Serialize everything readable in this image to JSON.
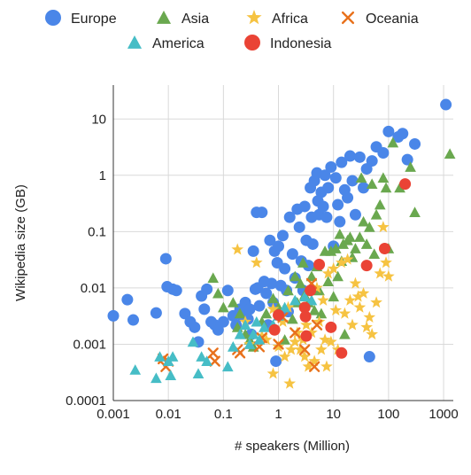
{
  "chart_data": {
    "type": "scatter",
    "xlabel": "# speakers (Million)",
    "ylabel": "Wikipedia size (GB)",
    "x_scale": "log",
    "y_scale": "log",
    "xlim": [
      0.001,
      1500
    ],
    "ylim": [
      0.0001,
      40
    ],
    "x_ticks": [
      0.001,
      0.01,
      0.1,
      1,
      10,
      100,
      1000
    ],
    "x_tick_labels": [
      "0.001",
      "0.01",
      "0.1",
      "1",
      "10",
      "100",
      "1000"
    ],
    "y_ticks": [
      0.0001,
      0.001,
      0.01,
      0.1,
      1,
      10
    ],
    "y_tick_labels": [
      "0.0001",
      "0.001",
      "0.01",
      "0.1",
      "1",
      "10"
    ],
    "grid": true,
    "legend_position": "top",
    "series": [
      {
        "name": "Europe",
        "color": "#4A86E8",
        "marker": "circle",
        "points": [
          [
            0.001,
            0.0032
          ],
          [
            0.0018,
            0.0062
          ],
          [
            0.0023,
            0.0027
          ],
          [
            0.006,
            0.0036
          ],
          [
            0.009,
            0.033
          ],
          [
            0.0095,
            0.0105
          ],
          [
            0.012,
            0.0095
          ],
          [
            0.014,
            0.009
          ],
          [
            0.02,
            0.0035
          ],
          [
            0.025,
            0.0025
          ],
          [
            0.03,
            0.002
          ],
          [
            0.035,
            0.0011
          ],
          [
            0.04,
            0.0072
          ],
          [
            0.045,
            0.0042
          ],
          [
            0.05,
            0.0095
          ],
          [
            0.06,
            0.0025
          ],
          [
            0.07,
            0.0022
          ],
          [
            0.08,
            0.0018
          ],
          [
            0.1,
            0.0025
          ],
          [
            0.12,
            0.009
          ],
          [
            0.15,
            0.0032
          ],
          [
            0.17,
            0.0022
          ],
          [
            0.2,
            0.0042
          ],
          [
            0.22,
            0.0032
          ],
          [
            0.25,
            0.0055
          ],
          [
            0.28,
            0.0028
          ],
          [
            0.3,
            0.0042
          ],
          [
            0.32,
            0.0015
          ],
          [
            0.35,
            0.045
          ],
          [
            0.38,
            0.0095
          ],
          [
            0.4,
            0.22
          ],
          [
            0.42,
            0.01
          ],
          [
            0.45,
            0.0048
          ],
          [
            0.5,
            0.22
          ],
          [
            0.55,
            0.013
          ],
          [
            0.6,
            0.008
          ],
          [
            0.65,
            0.0022
          ],
          [
            0.7,
            0.07
          ],
          [
            0.75,
            0.012
          ],
          [
            0.8,
            0.0055
          ],
          [
            0.85,
            0.045
          ],
          [
            0.9,
            0.0005
          ],
          [
            0.95,
            0.028
          ],
          [
            1.0,
            0.055
          ],
          [
            1.1,
            0.011
          ],
          [
            1.2,
            0.085
          ],
          [
            1.3,
            0.022
          ],
          [
            1.4,
            0.009
          ],
          [
            1.5,
            0.0038
          ],
          [
            1.6,
            0.18
          ],
          [
            1.8,
            0.04
          ],
          [
            2.0,
            0.015
          ],
          [
            2.2,
            0.25
          ],
          [
            2.4,
            0.12
          ],
          [
            2.6,
            0.03
          ],
          [
            2.8,
            0.009
          ],
          [
            3.0,
            0.28
          ],
          [
            3.2,
            0.07
          ],
          [
            3.5,
            0.025
          ],
          [
            3.8,
            0.6
          ],
          [
            4.0,
            0.18
          ],
          [
            4.2,
            0.06
          ],
          [
            4.5,
            0.8
          ],
          [
            5.0,
            1.1
          ],
          [
            5.2,
            0.35
          ],
          [
            5.5,
            0.2
          ],
          [
            6.0,
            0.5
          ],
          [
            6.5,
            0.28
          ],
          [
            7.0,
            1.0
          ],
          [
            7.5,
            0.18
          ],
          [
            8.0,
            0.6
          ],
          [
            9.0,
            1.4
          ],
          [
            10.0,
            0.055
          ],
          [
            11.0,
            0.9
          ],
          [
            12.0,
            0.3
          ],
          [
            13.0,
            0.15
          ],
          [
            14.0,
            1.7
          ],
          [
            16.0,
            0.55
          ],
          [
            18.0,
            0.4
          ],
          [
            20.0,
            2.2
          ],
          [
            22.0,
            0.8
          ],
          [
            25.0,
            0.2
          ],
          [
            30.0,
            2.1
          ],
          [
            35.0,
            0.6
          ],
          [
            40.0,
            1.3
          ],
          [
            45.0,
            0.0006
          ],
          [
            50.0,
            1.8
          ],
          [
            60.0,
            3.2
          ],
          [
            80.0,
            2.5
          ],
          [
            100.0,
            6.0
          ],
          [
            150.0,
            4.8
          ],
          [
            180.0,
            5.5
          ],
          [
            220.0,
            1.9
          ],
          [
            300.0,
            3.6
          ],
          [
            1100.0,
            18.0
          ]
        ]
      },
      {
        "name": "Asia",
        "color": "#6AA84F",
        "marker": "triangle",
        "points": [
          [
            0.065,
            0.015
          ],
          [
            0.08,
            0.008
          ],
          [
            0.1,
            0.0045
          ],
          [
            0.15,
            0.0055
          ],
          [
            0.18,
            0.002
          ],
          [
            0.2,
            0.0035
          ],
          [
            0.25,
            0.0015
          ],
          [
            0.3,
            0.0012
          ],
          [
            0.35,
            0.0009
          ],
          [
            0.5,
            0.0025
          ],
          [
            0.6,
            0.0035
          ],
          [
            0.8,
            0.0065
          ],
          [
            1.0,
            0.0045
          ],
          [
            1.3,
            0.0012
          ],
          [
            1.5,
            0.009
          ],
          [
            1.8,
            0.0028
          ],
          [
            2.0,
            0.016
          ],
          [
            2.2,
            0.0055
          ],
          [
            2.5,
            0.012
          ],
          [
            2.8,
            0.028
          ],
          [
            3.0,
            0.0075
          ],
          [
            3.5,
            0.0055
          ],
          [
            4.0,
            0.016
          ],
          [
            4.5,
            0.004
          ],
          [
            5.0,
            0.024
          ],
          [
            5.5,
            0.009
          ],
          [
            6.0,
            0.0035
          ],
          [
            7.0,
            0.045
          ],
          [
            8.0,
            0.013
          ],
          [
            9.0,
            0.045
          ],
          [
            10.0,
            0.007
          ],
          [
            11.0,
            0.05
          ],
          [
            12.0,
            0.016
          ],
          [
            13.0,
            0.09
          ],
          [
            14.0,
            0.03
          ],
          [
            15.0,
            0.06
          ],
          [
            16.0,
            0.0015
          ],
          [
            18.0,
            0.07
          ],
          [
            20.0,
            0.08
          ],
          [
            22.0,
            0.035
          ],
          [
            25.0,
            0.05
          ],
          [
            30.0,
            0.08
          ],
          [
            32.0,
            0.9
          ],
          [
            35.0,
            0.15
          ],
          [
            40.0,
            0.06
          ],
          [
            45.0,
            0.12
          ],
          [
            50.0,
            0.7
          ],
          [
            55.0,
            0.04
          ],
          [
            60.0,
            0.2
          ],
          [
            70.0,
            0.3
          ],
          [
            80.0,
            0.9
          ],
          [
            90.0,
            0.6
          ],
          [
            100.0,
            0.05
          ],
          [
            120.0,
            3.8
          ],
          [
            160.0,
            0.6
          ],
          [
            250.0,
            1.4
          ],
          [
            300.0,
            0.22
          ],
          [
            1300.0,
            2.4
          ]
        ]
      },
      {
        "name": "Africa",
        "color": "#F6C342",
        "marker": "star",
        "points": [
          [
            0.18,
            0.048
          ],
          [
            0.25,
            0.0025
          ],
          [
            0.3,
            0.001
          ],
          [
            0.4,
            0.028
          ],
          [
            0.5,
            0.0014
          ],
          [
            0.6,
            0.0012
          ],
          [
            0.8,
            0.0042
          ],
          [
            1.0,
            0.0009
          ],
          [
            1.2,
            0.0025
          ],
          [
            1.3,
            0.0006
          ],
          [
            1.5,
            0.0045
          ],
          [
            1.7,
            0.0008
          ],
          [
            2.0,
            0.0011
          ],
          [
            2.2,
            0.0016
          ],
          [
            2.5,
            0.0008
          ],
          [
            2.8,
            0.0012
          ],
          [
            3.0,
            0.0006
          ],
          [
            3.2,
            0.0022
          ],
          [
            3.5,
            0.0004
          ],
          [
            4.0,
            0.0016
          ],
          [
            4.5,
            0.0005
          ],
          [
            5.0,
            0.01
          ],
          [
            5.5,
            0.0025
          ],
          [
            6.0,
            0.0008
          ],
          [
            6.5,
            0.006
          ],
          [
            7.0,
            0.0012
          ],
          [
            7.5,
            0.0004
          ],
          [
            8.0,
            0.018
          ],
          [
            9.0,
            0.0011
          ],
          [
            10.0,
            0.022
          ],
          [
            11.0,
            0.004
          ],
          [
            12.0,
            0.0008
          ],
          [
            14.0,
            0.028
          ],
          [
            16.0,
            0.0035
          ],
          [
            18.0,
            0.032
          ],
          [
            20.0,
            0.006
          ],
          [
            22.0,
            0.0022
          ],
          [
            25.0,
            0.012
          ],
          [
            28.0,
            0.007
          ],
          [
            30.0,
            0.0045
          ],
          [
            35.0,
            0.008
          ],
          [
            40.0,
            0.002
          ],
          [
            45.0,
            0.003
          ],
          [
            50.0,
            0.0015
          ],
          [
            60.0,
            0.0055
          ],
          [
            70.0,
            0.018
          ],
          [
            80.0,
            0.12
          ],
          [
            90.0,
            0.028
          ],
          [
            100.0,
            0.016
          ],
          [
            0.8,
            0.0003
          ],
          [
            1.6,
            0.0002
          ]
        ]
      },
      {
        "name": "Oceania",
        "color": "#E8711C",
        "marker": "cross",
        "points": [
          [
            0.008,
            0.00055
          ],
          [
            0.009,
            0.0004
          ],
          [
            0.01,
            0.0005
          ],
          [
            0.065,
            0.0007
          ],
          [
            0.07,
            0.0005
          ],
          [
            0.18,
            0.0008
          ],
          [
            0.2,
            0.0007
          ],
          [
            0.45,
            0.0009
          ],
          [
            0.5,
            0.0013
          ],
          [
            1.0,
            0.001
          ],
          [
            1.2,
            0.003
          ],
          [
            2.0,
            0.0016
          ],
          [
            3.0,
            0.0008
          ],
          [
            4.0,
            0.012
          ],
          [
            4.5,
            0.0004
          ],
          [
            5.0,
            0.0022
          ]
        ]
      },
      {
        "name": "America",
        "color": "#46BDC6",
        "marker": "triangle",
        "points": [
          [
            0.0025,
            0.00035
          ],
          [
            0.006,
            0.00025
          ],
          [
            0.007,
            0.0006
          ],
          [
            0.01,
            0.0005
          ],
          [
            0.011,
            0.00028
          ],
          [
            0.012,
            0.0006
          ],
          [
            0.028,
            0.0011
          ],
          [
            0.035,
            0.0003
          ],
          [
            0.04,
            0.0006
          ],
          [
            0.05,
            0.0005
          ],
          [
            0.12,
            0.0004
          ],
          [
            0.15,
            0.0009
          ],
          [
            0.2,
            0.0015
          ],
          [
            0.25,
            0.0022
          ],
          [
            0.3,
            0.001
          ],
          [
            0.35,
            0.0015
          ],
          [
            0.4,
            0.0025
          ],
          [
            0.45,
            0.0012
          ],
          [
            0.55,
            0.002
          ],
          [
            0.8,
            0.0022
          ],
          [
            1.0,
            0.0032
          ],
          [
            1.3,
            0.0045
          ],
          [
            2.0,
            0.006
          ],
          [
            3.0,
            0.007
          ],
          [
            4.0,
            0.006
          ]
        ]
      },
      {
        "name": "Indonesia",
        "color": "#EA4335",
        "marker": "circle",
        "points": [
          [
            1.0,
            0.0033
          ],
          [
            0.85,
            0.0018
          ],
          [
            3.0,
            0.0045
          ],
          [
            3.1,
            0.0031
          ],
          [
            3.2,
            0.0014
          ],
          [
            3.8,
            0.009
          ],
          [
            5.5,
            0.026
          ],
          [
            9.0,
            0.002
          ],
          [
            14.0,
            0.0007
          ],
          [
            40.0,
            0.025
          ],
          [
            85.0,
            0.05
          ],
          [
            200.0,
            0.7
          ]
        ]
      }
    ]
  }
}
